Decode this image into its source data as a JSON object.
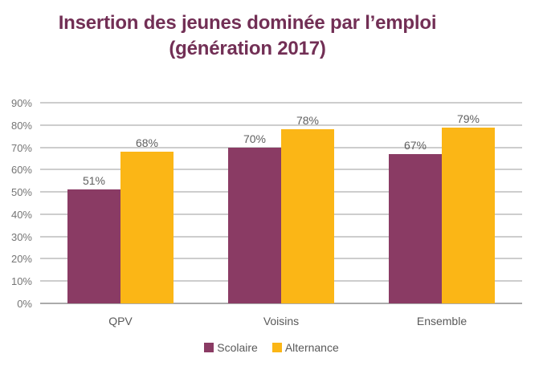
{
  "title": {
    "line1": "Insertion des jeunes dominée par l’emploi",
    "line2": "(génération 2017)"
  },
  "colors": {
    "title": "#722F55",
    "scolaire": "#8A3B64",
    "alternance": "#FBB616",
    "grid": "#CDCDCD",
    "baseline": "#ABABAB",
    "tick_label": "#757575",
    "data_label": "#5F5F5F",
    "axis_label": "#595959"
  },
  "chart_data": {
    "type": "bar",
    "title": "Insertion des jeunes dominée par l’emploi (génération 2017)",
    "categories": [
      "QPV",
      "Voisins",
      "Ensemble"
    ],
    "series": [
      {
        "name": "Scolaire",
        "color": "#8A3B64",
        "values": [
          51,
          70,
          67
        ]
      },
      {
        "name": "Alternance",
        "color": "#FBB616",
        "values": [
          68,
          78,
          79
        ]
      }
    ],
    "value_suffix": "%",
    "data_labels": true,
    "xlabel": "",
    "ylabel": "",
    "ylim": [
      0,
      90
    ],
    "ytick_step": 10,
    "ytick_labels": [
      "0%",
      "10%",
      "20%",
      "30%",
      "40%",
      "50%",
      "60%",
      "70%",
      "80%",
      "90%"
    ],
    "grid": true,
    "legend_position": "bottom"
  }
}
